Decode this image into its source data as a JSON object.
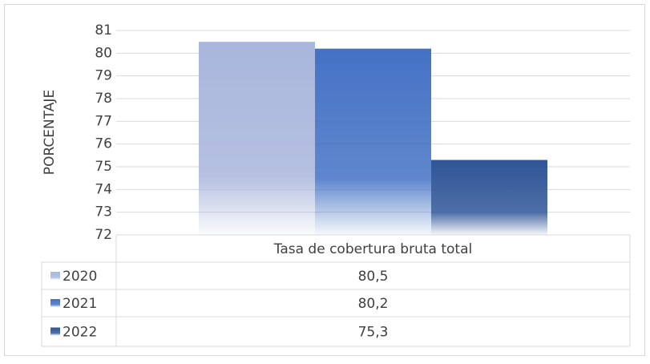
{
  "chart_data": {
    "type": "bar",
    "ylabel": "PORCENTAJE",
    "categories": [
      "Tasa de cobertura bruta total"
    ],
    "series": [
      {
        "name": "2020",
        "color": "#a9b6dc",
        "values": [
          80.5
        ],
        "value_labels": [
          "80,5"
        ]
      },
      {
        "name": "2021",
        "color": "#4472c4",
        "values": [
          80.2
        ],
        "value_labels": [
          "80,2"
        ]
      },
      {
        "name": "2022",
        "color": "#2f5597",
        "values": [
          75.3
        ],
        "value_labels": [
          "75,3"
        ]
      }
    ],
    "ylim": [
      72,
      81
    ],
    "yticks": [
      72,
      73,
      74,
      75,
      76,
      77,
      78,
      79,
      80,
      81
    ],
    "grid": true,
    "data_table": true
  }
}
